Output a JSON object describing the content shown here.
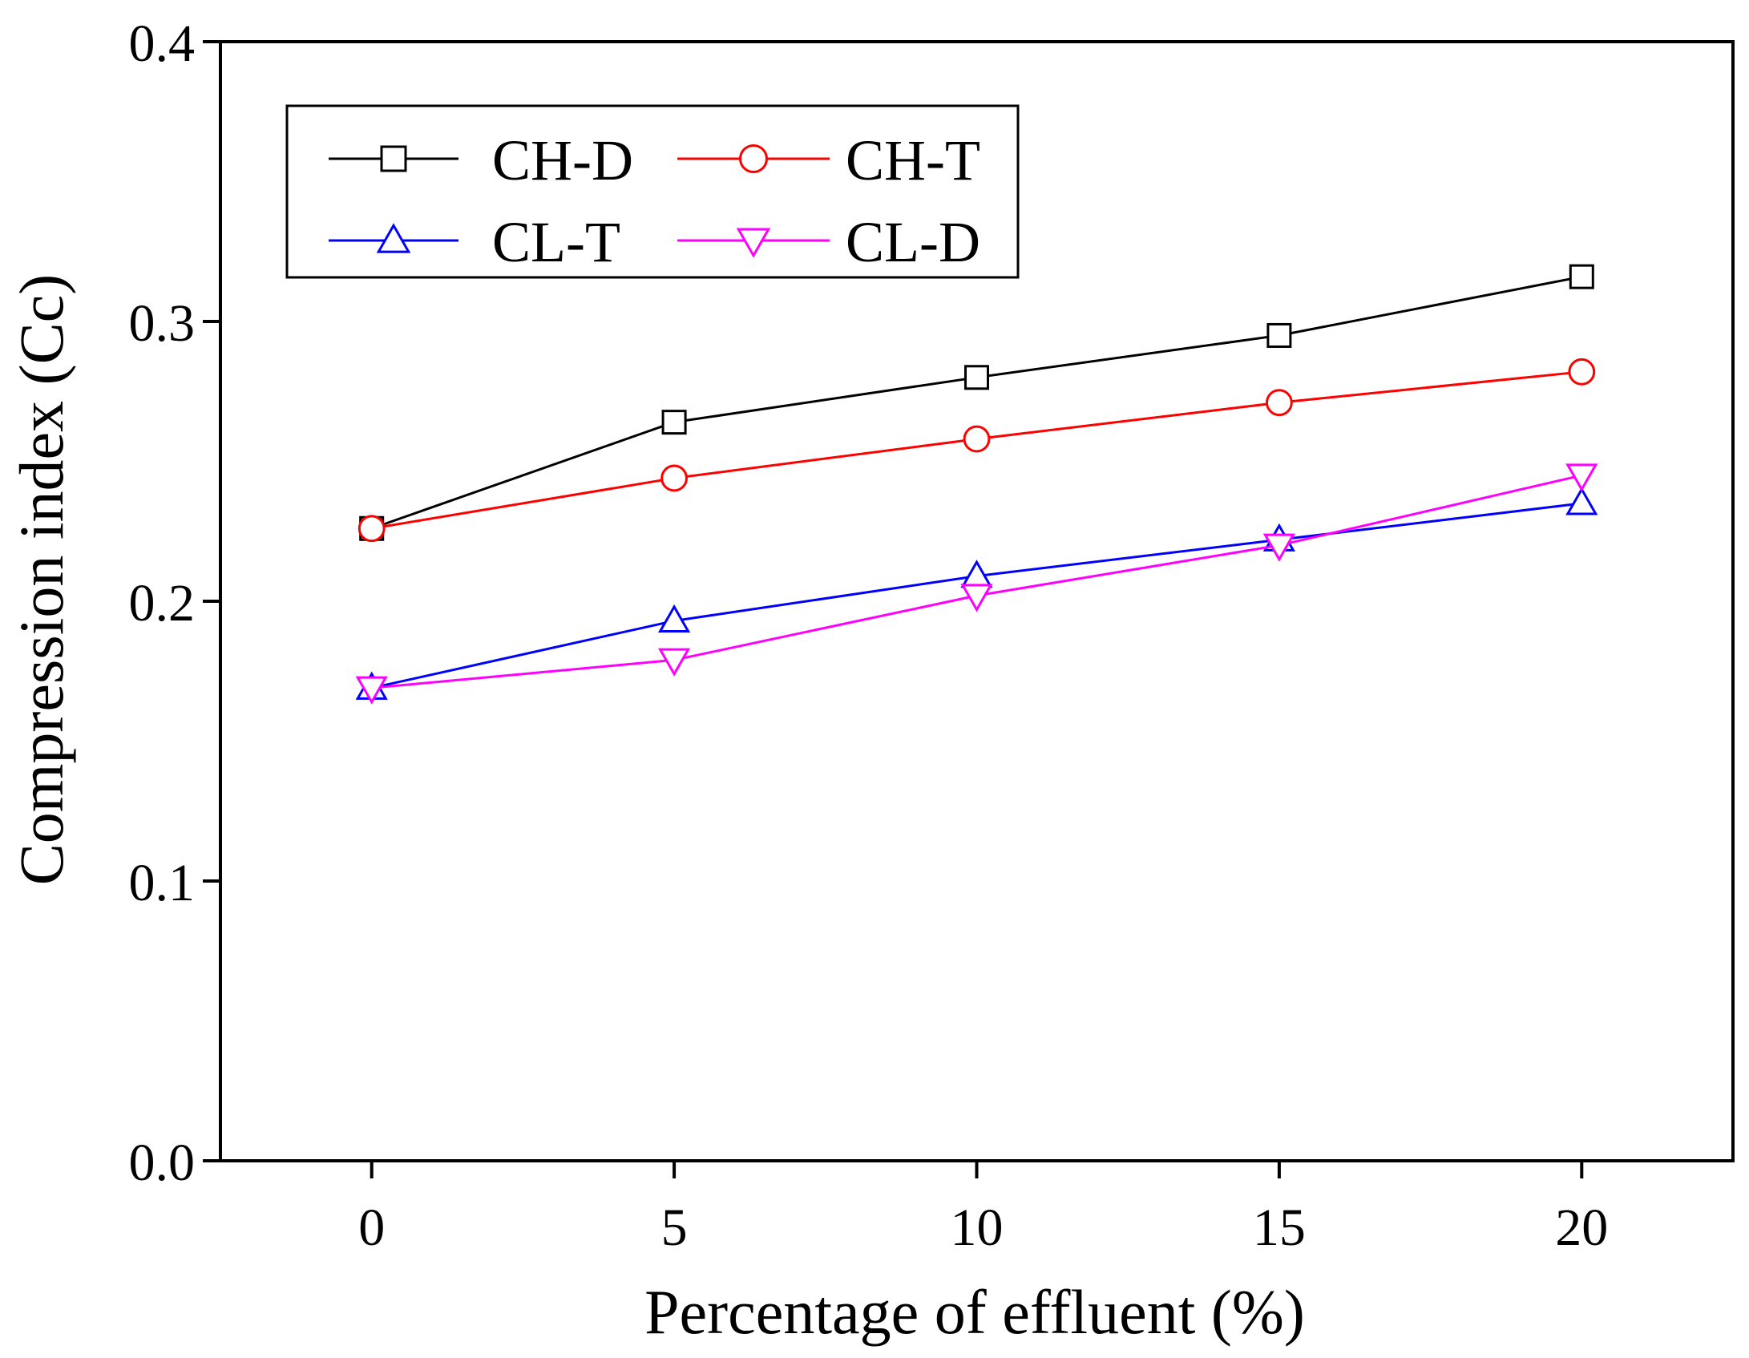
{
  "chart_data": {
    "type": "line",
    "title": "",
    "xlabel": "Percentage of effluent (%)",
    "ylabel": "Compression index (Cc)",
    "xlim": [
      -2.5,
      22.5
    ],
    "ylim": [
      0.0,
      0.4
    ],
    "x_ticks": [
      0,
      5,
      10,
      15,
      20
    ],
    "y_ticks": [
      0.0,
      0.1,
      0.2,
      0.3,
      0.4
    ],
    "x_tick_labels": [
      "0",
      "5",
      "10",
      "15",
      "20"
    ],
    "y_tick_labels": [
      "0.0",
      "0.1",
      "0.2",
      "0.3",
      "0.4"
    ],
    "grid": false,
    "legend_position": "top-left",
    "x": [
      0,
      5,
      10,
      15,
      20
    ],
    "series": [
      {
        "name": "CH-D",
        "color": "#000000",
        "marker": "square",
        "values": [
          0.226,
          0.264,
          0.28,
          0.295,
          0.316
        ]
      },
      {
        "name": "CH-T",
        "color": "#ff0000",
        "marker": "circle",
        "values": [
          0.226,
          0.244,
          0.258,
          0.271,
          0.282
        ]
      },
      {
        "name": "CL-T",
        "color": "#0000ff",
        "marker": "triangle-up",
        "values": [
          0.169,
          0.193,
          0.209,
          0.222,
          0.235
        ]
      },
      {
        "name": "CL-D",
        "color": "#ff00ff",
        "marker": "triangle-down",
        "values": [
          0.169,
          0.179,
          0.202,
          0.22,
          0.245
        ]
      }
    ]
  }
}
